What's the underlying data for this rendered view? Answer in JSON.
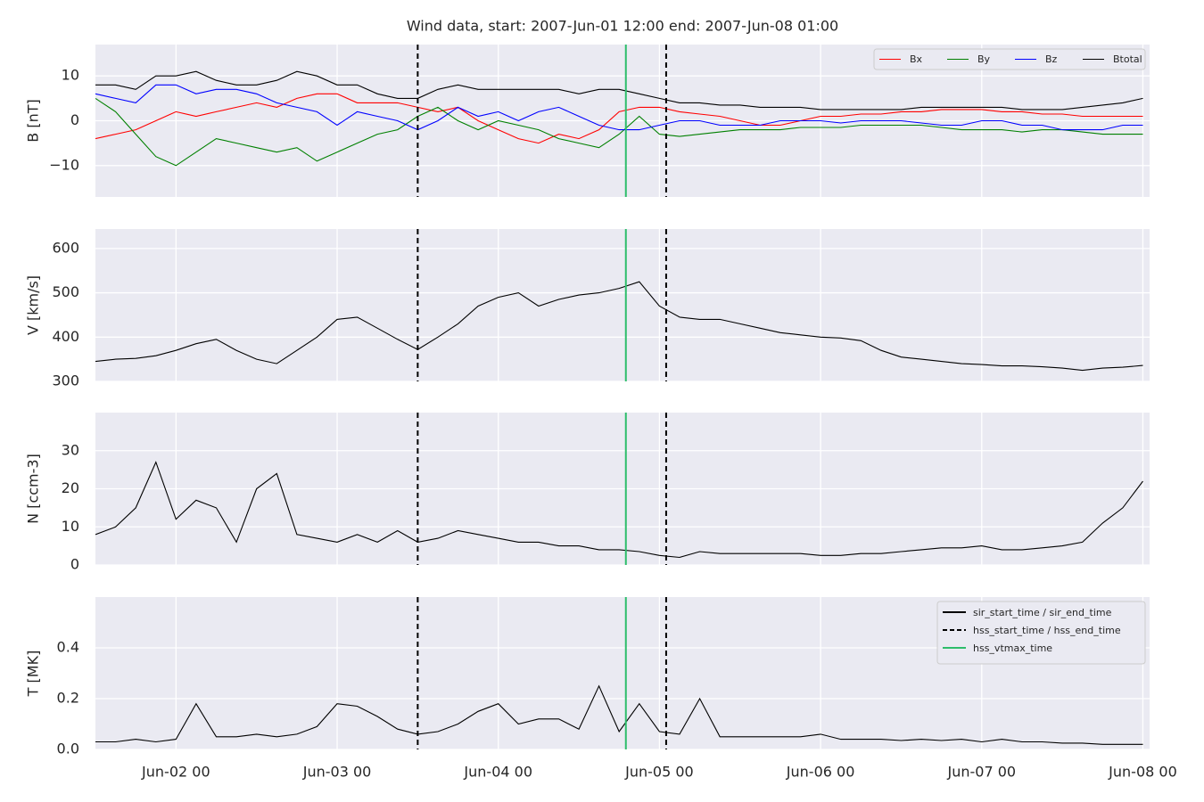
{
  "title": "Wind data, start: 2007-Jun-01 12:00  end: 2007-Jun-08 01:00",
  "event_lines": {
    "legend": "upper right",
    "series": [
      {
        "name": "sir_start_time / sir_end_time",
        "color": "#000000",
        "dashed": false,
        "x": []
      },
      {
        "name": "hss_start_time / hss_end_time",
        "color": "#000000",
        "dashed": true,
        "x": [
          "Jun-03 12",
          "Jun-05 01"
        ]
      },
      {
        "name": "hss_vtmax_time",
        "color": "#2ebd6b",
        "dashed": false,
        "x": [
          "Jun-04 19"
        ]
      }
    ]
  },
  "chart_data": [
    {
      "type": "line",
      "ylabel": "B [nT]",
      "ylim": [
        -17,
        17
      ],
      "yticks": [
        {
          "value": -10,
          "label": "−10"
        },
        0,
        10
      ],
      "legend": "upper right",
      "grid": true,
      "xlim": [
        "Jun-01 12",
        "Jun-08 01"
      ],
      "x": [
        "Jun-01 12",
        "Jun-01 15",
        "Jun-01 18",
        "Jun-01 21",
        "Jun-02 00",
        "Jun-02 03",
        "Jun-02 06",
        "Jun-02 09",
        "Jun-02 12",
        "Jun-02 15",
        "Jun-02 18",
        "Jun-02 21",
        "Jun-03 00",
        "Jun-03 03",
        "Jun-03 06",
        "Jun-03 09",
        "Jun-03 12",
        "Jun-03 15",
        "Jun-03 18",
        "Jun-03 21",
        "Jun-04 00",
        "Jun-04 03",
        "Jun-04 06",
        "Jun-04 09",
        "Jun-04 12",
        "Jun-04 15",
        "Jun-04 18",
        "Jun-04 21",
        "Jun-05 00",
        "Jun-05 03",
        "Jun-05 06",
        "Jun-05 09",
        "Jun-05 12",
        "Jun-05 15",
        "Jun-05 18",
        "Jun-05 21",
        "Jun-06 00",
        "Jun-06 03",
        "Jun-06 06",
        "Jun-06 09",
        "Jun-06 12",
        "Jun-06 15",
        "Jun-06 18",
        "Jun-06 21",
        "Jun-07 00",
        "Jun-07 03",
        "Jun-07 06",
        "Jun-07 09",
        "Jun-07 12",
        "Jun-07 15",
        "Jun-07 18",
        "Jun-07 21",
        "Jun-08 00"
      ],
      "series": [
        {
          "name": "Bx",
          "color": "#ff0000",
          "values": [
            -4,
            -3,
            -2,
            0,
            2,
            1,
            2,
            3,
            4,
            3,
            5,
            6,
            6,
            4,
            4,
            4,
            3,
            2,
            3,
            0,
            -2,
            -4,
            -5,
            -3,
            -4,
            -2,
            2,
            3,
            3,
            2,
            1.5,
            1,
            0,
            -1,
            -1,
            0,
            1,
            1,
            1.5,
            1.5,
            2,
            2,
            2.5,
            2.5,
            2.5,
            2,
            2,
            1.5,
            1.5,
            1,
            1,
            1,
            1
          ]
        },
        {
          "name": "By",
          "color": "#008000",
          "values": [
            5,
            2,
            -3,
            -8,
            -10,
            -7,
            -4,
            -5,
            -6,
            -7,
            -6,
            -9,
            -7,
            -5,
            -3,
            -2,
            1,
            3,
            0,
            -2,
            0,
            -1,
            -2,
            -4,
            -5,
            -6,
            -3,
            1,
            -3,
            -3.5,
            -3,
            -2.5,
            -2,
            -2,
            -2,
            -1.5,
            -1.5,
            -1.5,
            -1,
            -1,
            -1,
            -1,
            -1.5,
            -2,
            -2,
            -2,
            -2.5,
            -2,
            -2,
            -2.5,
            -3,
            -3,
            -3
          ]
        },
        {
          "name": "Bz",
          "color": "#0000ff",
          "values": [
            6,
            5,
            4,
            8,
            8,
            6,
            7,
            7,
            6,
            4,
            3,
            2,
            -1,
            2,
            1,
            0,
            -2,
            0,
            3,
            1,
            2,
            0,
            2,
            3,
            1,
            -1,
            -2,
            -2,
            -1,
            0,
            0,
            -1,
            -1,
            -1,
            0,
            0,
            0,
            -0.5,
            0,
            0,
            0,
            -0.5,
            -1,
            -1,
            0,
            0,
            -1,
            -1,
            -2,
            -2,
            -2,
            -1,
            -1
          ]
        },
        {
          "name": "Btotal",
          "color": "#000000",
          "values": [
            8,
            8,
            7,
            10,
            10,
            11,
            9,
            8,
            8,
            9,
            11,
            10,
            8,
            8,
            6,
            5,
            5,
            7,
            8,
            7,
            7,
            7,
            7,
            7,
            6,
            7,
            7,
            6,
            5,
            4,
            4,
            3.5,
            3.5,
            3,
            3,
            3,
            2.5,
            2.5,
            2.5,
            2.5,
            2.5,
            3,
            3,
            3,
            3,
            3,
            2.5,
            2.5,
            2.5,
            3,
            3.5,
            4,
            5
          ]
        }
      ]
    },
    {
      "type": "line",
      "ylabel": "V [km/s]",
      "ylim": [
        300,
        644
      ],
      "yticks": [
        300,
        400,
        500,
        600
      ],
      "grid": true,
      "xlim": [
        "Jun-01 12",
        "Jun-08 01"
      ],
      "x": [
        "Jun-01 12",
        "Jun-01 15",
        "Jun-01 18",
        "Jun-01 21",
        "Jun-02 00",
        "Jun-02 03",
        "Jun-02 06",
        "Jun-02 09",
        "Jun-02 12",
        "Jun-02 15",
        "Jun-02 18",
        "Jun-02 21",
        "Jun-03 00",
        "Jun-03 03",
        "Jun-03 06",
        "Jun-03 09",
        "Jun-03 12",
        "Jun-03 15",
        "Jun-03 18",
        "Jun-03 21",
        "Jun-04 00",
        "Jun-04 03",
        "Jun-04 06",
        "Jun-04 09",
        "Jun-04 12",
        "Jun-04 15",
        "Jun-04 18",
        "Jun-04 21",
        "Jun-05 00",
        "Jun-05 03",
        "Jun-05 06",
        "Jun-05 09",
        "Jun-05 12",
        "Jun-05 15",
        "Jun-05 18",
        "Jun-05 21",
        "Jun-06 00",
        "Jun-06 03",
        "Jun-06 06",
        "Jun-06 09",
        "Jun-06 12",
        "Jun-06 15",
        "Jun-06 18",
        "Jun-06 21",
        "Jun-07 00",
        "Jun-07 03",
        "Jun-07 06",
        "Jun-07 09",
        "Jun-07 12",
        "Jun-07 15",
        "Jun-07 18",
        "Jun-07 21",
        "Jun-08 00"
      ],
      "series": [
        {
          "color": "#000000",
          "values": [
            345,
            350,
            352,
            358,
            370,
            385,
            395,
            370,
            350,
            340,
            370,
            400,
            440,
            445,
            420,
            395,
            372,
            400,
            430,
            470,
            490,
            500,
            470,
            485,
            495,
            500,
            510,
            525,
            470,
            445,
            440,
            440,
            430,
            420,
            410,
            405,
            400,
            398,
            392,
            370,
            355,
            350,
            345,
            340,
            338,
            335,
            335,
            333,
            330,
            325,
            330,
            332,
            336
          ]
        }
      ]
    },
    {
      "type": "line",
      "ylabel": "N [ccm-3]",
      "ylim": [
        0,
        40
      ],
      "yticks": [
        0,
        10,
        20,
        30
      ],
      "grid": true,
      "xlim": [
        "Jun-01 12",
        "Jun-08 01"
      ],
      "x": [
        "Jun-01 12",
        "Jun-01 15",
        "Jun-01 18",
        "Jun-01 21",
        "Jun-02 00",
        "Jun-02 03",
        "Jun-02 06",
        "Jun-02 09",
        "Jun-02 12",
        "Jun-02 15",
        "Jun-02 18",
        "Jun-02 21",
        "Jun-03 00",
        "Jun-03 03",
        "Jun-03 06",
        "Jun-03 09",
        "Jun-03 12",
        "Jun-03 15",
        "Jun-03 18",
        "Jun-03 21",
        "Jun-04 00",
        "Jun-04 03",
        "Jun-04 06",
        "Jun-04 09",
        "Jun-04 12",
        "Jun-04 15",
        "Jun-04 18",
        "Jun-04 21",
        "Jun-05 00",
        "Jun-05 03",
        "Jun-05 06",
        "Jun-05 09",
        "Jun-05 12",
        "Jun-05 15",
        "Jun-05 18",
        "Jun-05 21",
        "Jun-06 00",
        "Jun-06 03",
        "Jun-06 06",
        "Jun-06 09",
        "Jun-06 12",
        "Jun-06 15",
        "Jun-06 18",
        "Jun-06 21",
        "Jun-07 00",
        "Jun-07 03",
        "Jun-07 06",
        "Jun-07 09",
        "Jun-07 12",
        "Jun-07 15",
        "Jun-07 18",
        "Jun-07 21",
        "Jun-08 00"
      ],
      "series": [
        {
          "color": "#000000",
          "values": [
            8,
            10,
            15,
            27,
            12,
            17,
            15,
            6,
            20,
            24,
            8,
            7,
            6,
            8,
            6,
            9,
            6,
            7,
            9,
            8,
            7,
            6,
            6,
            5,
            5,
            4,
            4,
            3.5,
            2.5,
            2,
            3.5,
            3,
            3,
            3,
            3,
            3,
            2.5,
            2.5,
            3,
            3,
            3.5,
            4,
            4.5,
            4.5,
            5,
            4,
            4,
            4.5,
            5,
            6,
            11,
            15,
            22
          ]
        }
      ]
    },
    {
      "type": "line",
      "ylabel": "T [MK]",
      "ylim": [
        0,
        0.6
      ],
      "yticks": [
        {
          "value": 0,
          "label": "0.0"
        },
        0.2,
        0.4
      ],
      "grid": true,
      "xlim": [
        "Jun-01 12",
        "Jun-08 01"
      ],
      "xticks": [
        "Jun-02 00",
        "Jun-03 00",
        "Jun-04 00",
        "Jun-05 00",
        "Jun-06 00",
        "Jun-07 00",
        "Jun-08 00"
      ],
      "x": [
        "Jun-01 12",
        "Jun-01 15",
        "Jun-01 18",
        "Jun-01 21",
        "Jun-02 00",
        "Jun-02 03",
        "Jun-02 06",
        "Jun-02 09",
        "Jun-02 12",
        "Jun-02 15",
        "Jun-02 18",
        "Jun-02 21",
        "Jun-03 00",
        "Jun-03 03",
        "Jun-03 06",
        "Jun-03 09",
        "Jun-03 12",
        "Jun-03 15",
        "Jun-03 18",
        "Jun-03 21",
        "Jun-04 00",
        "Jun-04 03",
        "Jun-04 06",
        "Jun-04 09",
        "Jun-04 12",
        "Jun-04 15",
        "Jun-04 18",
        "Jun-04 21",
        "Jun-05 00",
        "Jun-05 03",
        "Jun-05 06",
        "Jun-05 09",
        "Jun-05 12",
        "Jun-05 15",
        "Jun-05 18",
        "Jun-05 21",
        "Jun-06 00",
        "Jun-06 03",
        "Jun-06 06",
        "Jun-06 09",
        "Jun-06 12",
        "Jun-06 15",
        "Jun-06 18",
        "Jun-06 21",
        "Jun-07 00",
        "Jun-07 03",
        "Jun-07 06",
        "Jun-07 09",
        "Jun-07 12",
        "Jun-07 15",
        "Jun-07 18",
        "Jun-07 21",
        "Jun-08 00"
      ],
      "series": [
        {
          "color": "#000000",
          "values": [
            0.03,
            0.03,
            0.04,
            0.03,
            0.04,
            0.18,
            0.05,
            0.05,
            0.06,
            0.05,
            0.06,
            0.09,
            0.18,
            0.17,
            0.13,
            0.08,
            0.06,
            0.07,
            0.1,
            0.15,
            0.18,
            0.1,
            0.12,
            0.12,
            0.08,
            0.25,
            0.07,
            0.18,
            0.07,
            0.06,
            0.2,
            0.05,
            0.05,
            0.05,
            0.05,
            0.05,
            0.06,
            0.04,
            0.04,
            0.04,
            0.035,
            0.04,
            0.035,
            0.04,
            0.03,
            0.04,
            0.03,
            0.03,
            0.025,
            0.025,
            0.02,
            0.02,
            0.02
          ]
        }
      ]
    }
  ]
}
